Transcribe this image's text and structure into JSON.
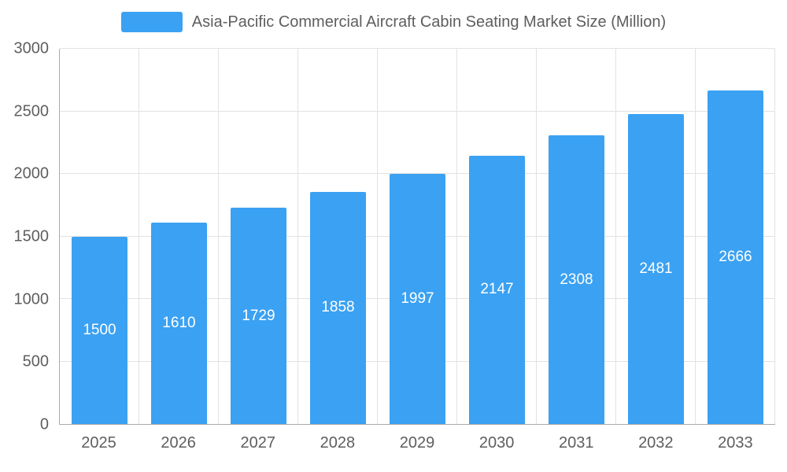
{
  "legend": {
    "title": "Asia-Pacific Commercial Aircraft Cabin Seating Market Size (Million)"
  },
  "colors": {
    "bar": "#3BA1F2",
    "axis": "#aaaaaa",
    "grid": "#e2e2e2",
    "text": "#5e5e5e",
    "value_label": "#ffffff",
    "background": "#ffffff"
  },
  "chart_data": {
    "type": "bar",
    "title": "Asia-Pacific Commercial Aircraft Cabin Seating Market Size (Million)",
    "categories": [
      "2025",
      "2026",
      "2027",
      "2028",
      "2029",
      "2030",
      "2031",
      "2032",
      "2033"
    ],
    "values": [
      1500,
      1610,
      1729,
      1858,
      1997,
      2147,
      2308,
      2481,
      2666
    ],
    "xlabel": "",
    "ylabel": "",
    "ylim": [
      0,
      3000
    ],
    "yticks": [
      0,
      500,
      1000,
      1500,
      2000,
      2500,
      3000
    ],
    "grid": true,
    "legend_position": "top",
    "value_labels": "inside-center"
  }
}
